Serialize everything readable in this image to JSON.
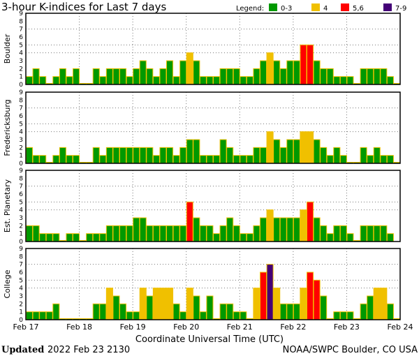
{
  "chart_data": {
    "type": "bar",
    "title": "3-hour K-indices for Last 7 days",
    "xlabel": "Coordinate Universal Time (UTC)",
    "x_ticks": [
      "Feb 17",
      "Feb 18",
      "Feb 19",
      "Feb 20",
      "Feb 21",
      "Feb 22",
      "Feb 23",
      "Feb 24"
    ],
    "y_ticks": [
      "0",
      "1",
      "2",
      "3",
      "4",
      "5",
      "6",
      "7",
      "8",
      "9"
    ],
    "ylim": [
      0,
      9
    ],
    "grid": "dotted at K=4,5,7 and day boundaries",
    "legend": {
      "label": "Legend:",
      "placement": "top-right",
      "items": [
        {
          "label": "0-3",
          "color": "#009900"
        },
        {
          "label": "4",
          "color": "#f0c000"
        },
        {
          "label": "5,6",
          "color": "#ff0000"
        },
        {
          "label": "7-9",
          "color": "#440077"
        }
      ]
    },
    "bar_outline_color": "#f0c000",
    "intervals_per_day": 8,
    "series": [
      {
        "name": "Boulder",
        "values": [
          1,
          2,
          1,
          0,
          1,
          2,
          1,
          2,
          0,
          0,
          2,
          1,
          2,
          2,
          2,
          1,
          2,
          3,
          2,
          1,
          2,
          3,
          1,
          3,
          4,
          3,
          1,
          1,
          1,
          2,
          2,
          2,
          1,
          1,
          2,
          3,
          4,
          3,
          2,
          3,
          3,
          5,
          5,
          3,
          2,
          2,
          1,
          1,
          1,
          0,
          2,
          2,
          2,
          2,
          1,
          0
        ]
      },
      {
        "name": "Fredericksburg",
        "values": [
          2,
          1,
          1,
          0,
          1,
          2,
          1,
          1,
          0,
          0,
          2,
          1,
          2,
          2,
          2,
          2,
          2,
          2,
          2,
          1,
          2,
          2,
          1,
          2,
          3,
          3,
          1,
          1,
          1,
          3,
          2,
          1,
          1,
          1,
          2,
          2,
          4,
          3,
          2,
          3,
          3,
          4,
          4,
          3,
          2,
          1,
          2,
          1,
          0,
          0,
          2,
          1,
          2,
          1,
          1,
          0
        ]
      },
      {
        "name": "Est. Planetary",
        "values": [
          2,
          2,
          1,
          1,
          1,
          0,
          1,
          1,
          0,
          1,
          1,
          1,
          2,
          2,
          2,
          2,
          3,
          3,
          2,
          2,
          2,
          2,
          2,
          2,
          5,
          3,
          2,
          2,
          1,
          2,
          3,
          2,
          1,
          1,
          2,
          3,
          4,
          3,
          3,
          3,
          3,
          4,
          5,
          3,
          2,
          1,
          2,
          2,
          1,
          0,
          2,
          2,
          2,
          2,
          1,
          null
        ]
      },
      {
        "name": "College",
        "values": [
          1,
          1,
          1,
          1,
          2,
          0,
          0,
          0,
          0,
          0,
          2,
          2,
          4,
          3,
          2,
          1,
          1,
          4,
          3,
          4,
          4,
          4,
          2,
          1,
          4,
          3,
          1,
          3,
          0,
          2,
          2,
          1,
          1,
          0,
          4,
          6,
          7,
          4,
          2,
          2,
          2,
          4,
          6,
          5,
          3,
          0,
          1,
          1,
          1,
          0,
          2,
          3,
          4,
          4,
          2,
          0
        ]
      }
    ]
  },
  "footer": {
    "updated_label": "Updated",
    "updated_value": "2022 Feb 23 2130",
    "source": "NOAA/SWPC Boulder, CO USA"
  }
}
